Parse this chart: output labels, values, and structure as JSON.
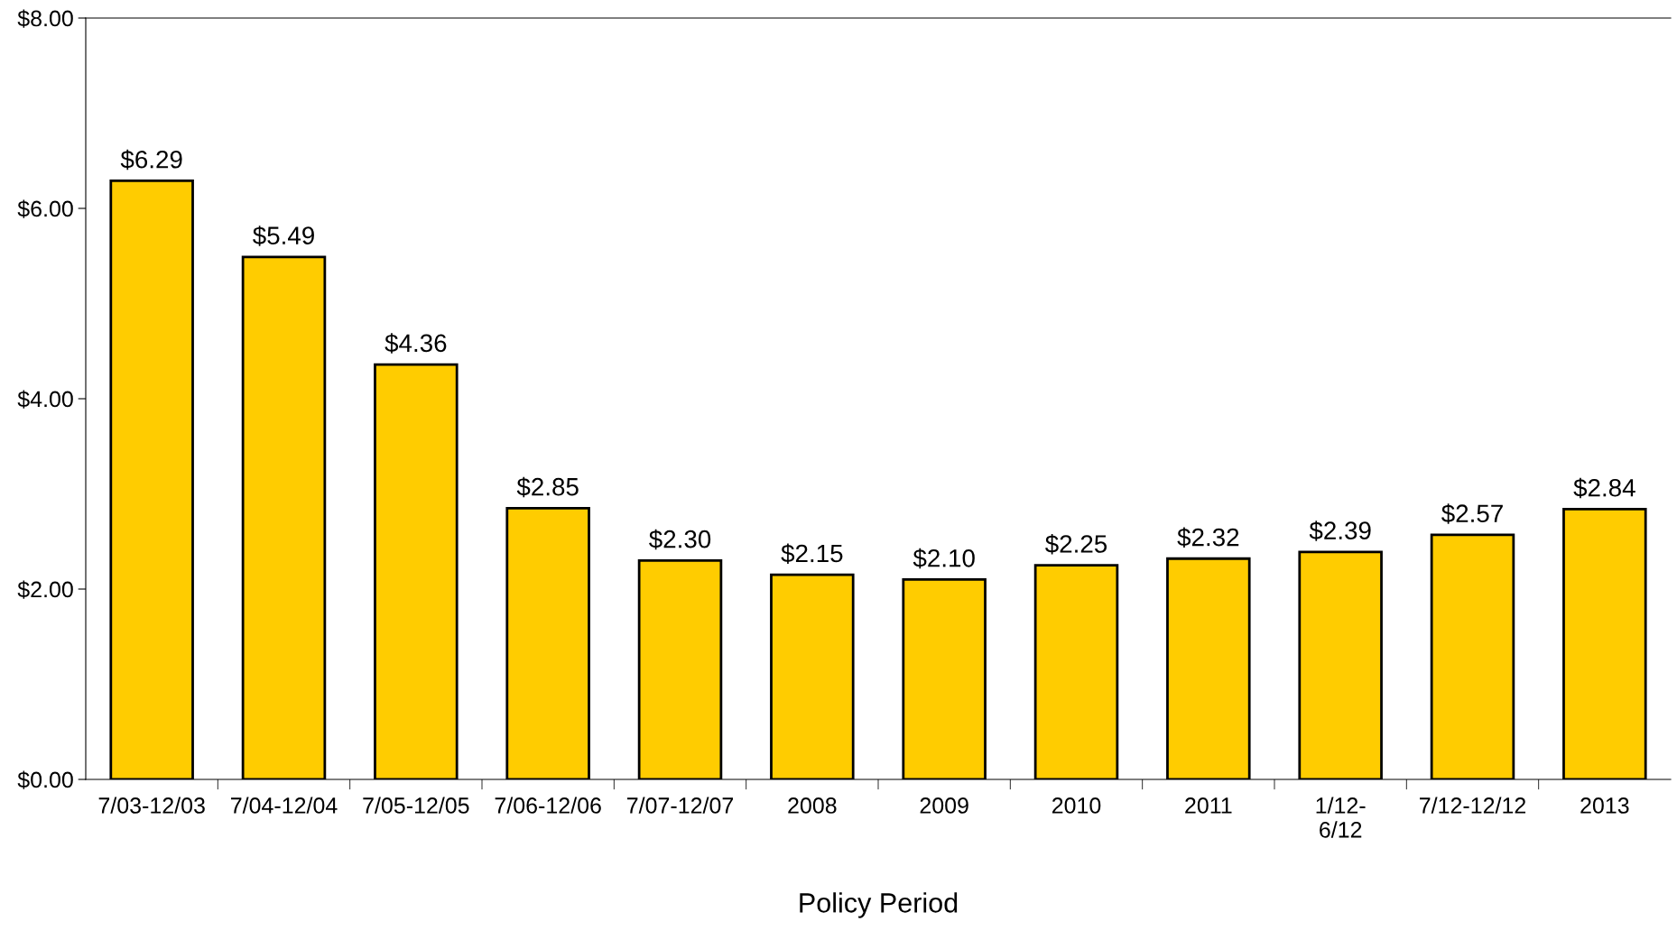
{
  "chart_data": {
    "type": "bar",
    "xlabel": "Policy Period",
    "categories": [
      "7/03-12/03",
      "7/04-12/04",
      "7/05-12/05",
      "7/06-12/06",
      "7/07-12/07",
      "2008",
      "2009",
      "2010",
      "2011",
      "1/12-\n6/12",
      "7/12-12/12",
      "2013"
    ],
    "values": [
      6.29,
      5.49,
      4.36,
      2.85,
      2.3,
      2.15,
      2.1,
      2.25,
      2.32,
      2.39,
      2.57,
      2.84
    ],
    "value_labels": [
      "$6.29",
      "$5.49",
      "$4.36",
      "$2.85",
      "$2.30",
      "$2.15",
      "$2.10",
      "$2.25",
      "$2.32",
      "$2.39",
      "$2.57",
      "$2.84"
    ],
    "color": "#ffcc00",
    "ylim": [
      0,
      8
    ],
    "yticks": [
      {
        "value": 0,
        "label": "$0.00"
      },
      {
        "value": 2,
        "label": "$2.00"
      },
      {
        "value": 4,
        "label": "$4.00"
      },
      {
        "value": 6,
        "label": "$6.00"
      },
      {
        "value": 8,
        "label": "$8.00"
      }
    ],
    "grid": false,
    "legend": false
  }
}
